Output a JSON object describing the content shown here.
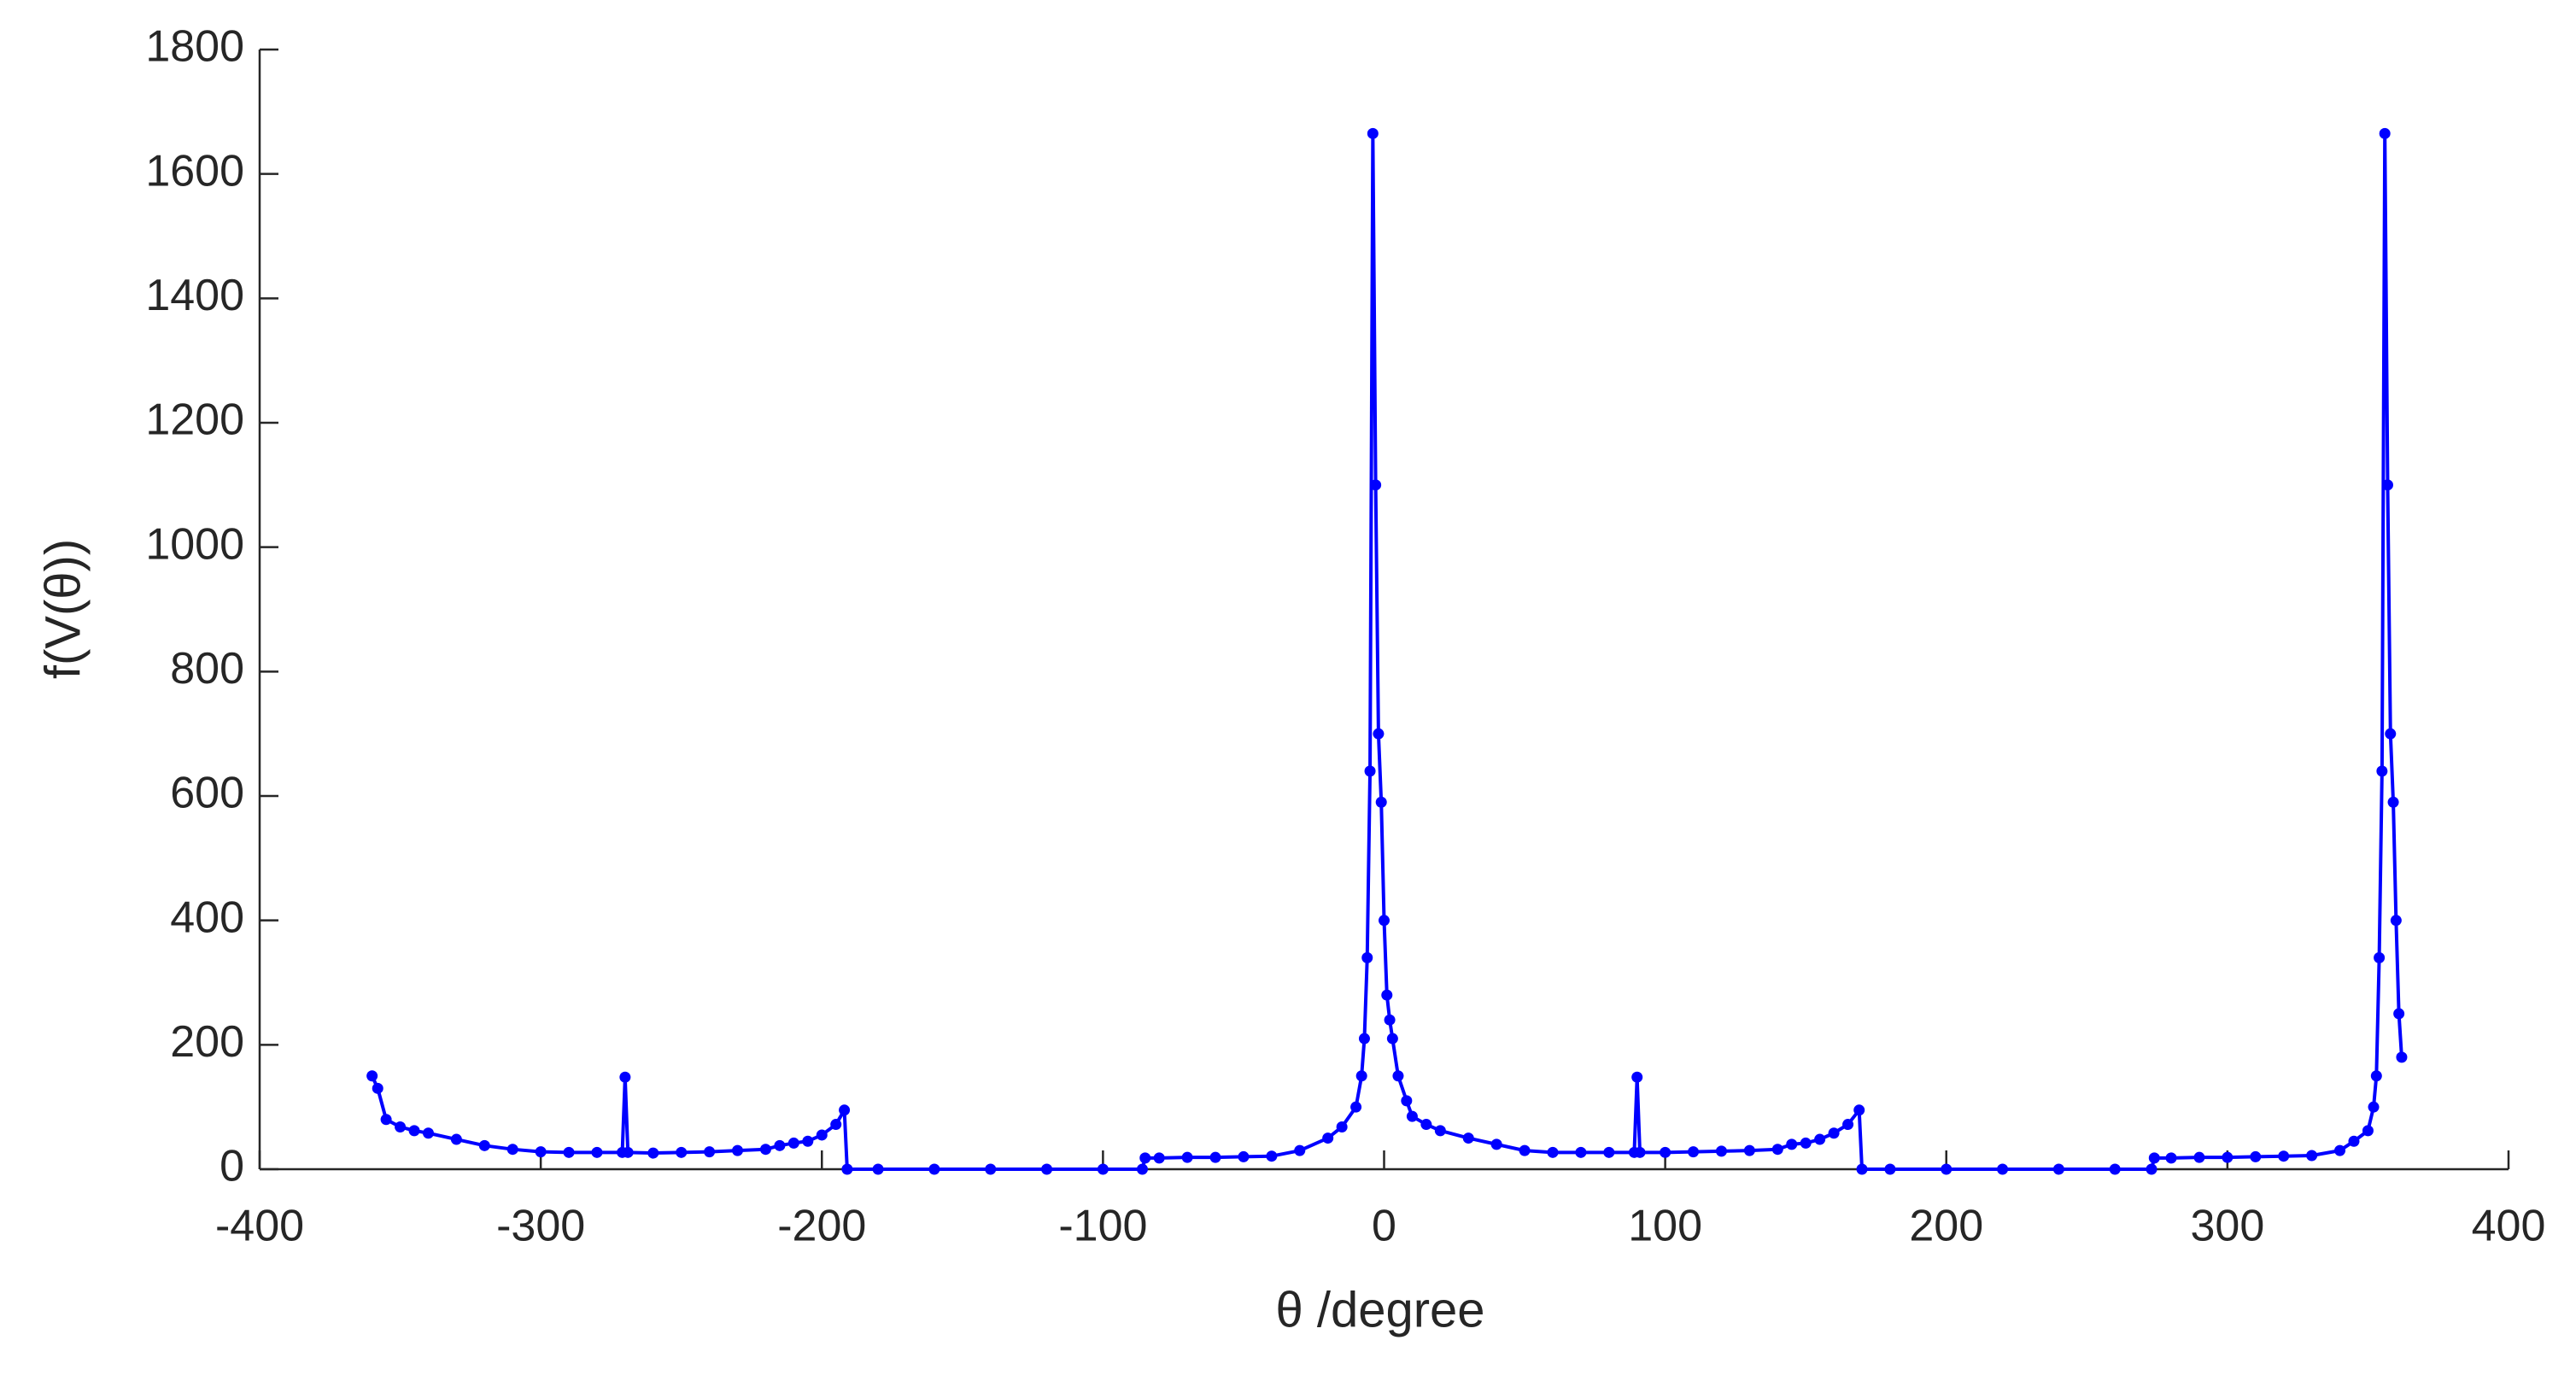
{
  "chart_data": {
    "type": "line",
    "xlabel": "θ /degree",
    "ylabel": "f(V(θ))",
    "x": [
      -360,
      -358,
      -355,
      -350,
      -345,
      -340,
      -330,
      -320,
      -310,
      -300,
      -290,
      -280,
      -271,
      -270,
      -269,
      -260,
      -250,
      -240,
      -230,
      -220,
      -215,
      -210,
      -205,
      -200,
      -195,
      -192,
      -191,
      -180,
      -160,
      -140,
      -120,
      -100,
      -86,
      -85,
      -80,
      -70,
      -60,
      -50,
      -40,
      -30,
      -20,
      -15,
      -10,
      -8,
      -7,
      -6,
      -5,
      -4,
      -3,
      -2,
      -1,
      0,
      1,
      2,
      3,
      5,
      8,
      10,
      15,
      20,
      30,
      40,
      50,
      60,
      70,
      80,
      89,
      90,
      91,
      100,
      110,
      120,
      130,
      140,
      145,
      150,
      155,
      160,
      165,
      169,
      170,
      180,
      200,
      220,
      240,
      260,
      273,
      274,
      280,
      290,
      300,
      310,
      320,
      330,
      340,
      345,
      350,
      352,
      353,
      354,
      355,
      356,
      357,
      358,
      359,
      360,
      361,
      362
    ],
    "series": [
      {
        "color": "#0000ff",
        "values": [
          150,
          130,
          80,
          68,
          62,
          58,
          48,
          38,
          32,
          28,
          27,
          27,
          27,
          148,
          27,
          26,
          27,
          28,
          30,
          32,
          38,
          42,
          45,
          55,
          72,
          95,
          0,
          0,
          0,
          0,
          0,
          0,
          0,
          18,
          18,
          19,
          19,
          20,
          21,
          30,
          50,
          68,
          100,
          150,
          210,
          340,
          640,
          1665,
          1100,
          700,
          590,
          400,
          280,
          240,
          210,
          150,
          110,
          85,
          72,
          62,
          50,
          40,
          30,
          27,
          27,
          27,
          27,
          148,
          27,
          27,
          28,
          29,
          30,
          32,
          40,
          42,
          48,
          58,
          72,
          95,
          0,
          0,
          0,
          0,
          0,
          0,
          0,
          18,
          18,
          19,
          19,
          20,
          21,
          22,
          30,
          45,
          62,
          100,
          150,
          340,
          640,
          1665,
          1100,
          700,
          590,
          400,
          250,
          180
        ]
      }
    ],
    "xlim": [
      -400,
      400
    ],
    "xticks": [
      -400,
      -300,
      -200,
      -100,
      0,
      100,
      200,
      300,
      400
    ],
    "ylim": [
      0,
      1800
    ],
    "yticks": [
      0,
      200,
      400,
      600,
      800,
      1000,
      1200,
      1400,
      1600,
      1800
    ],
    "grid": false
  }
}
